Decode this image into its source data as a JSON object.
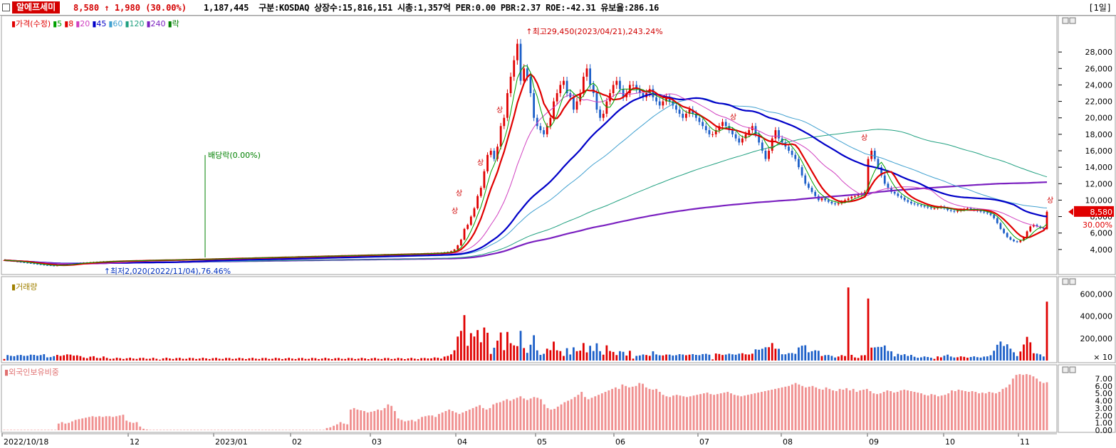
{
  "header": {
    "name": "알에프세미",
    "price": "8,580",
    "change_arrow": "↑",
    "change": "1,980",
    "change_pct": "(30.00%)",
    "volume": "1,187,445",
    "info": "구분:KOSDAQ 상장수:15,816,151 시총:1,357억 PER:0.00 PBR:2.37 ROE:-42.31 유보율:286.16",
    "period": "[1일]"
  },
  "colors": {
    "up": "#e00000",
    "down": "#1c5fc8",
    "ma5": "#00a000",
    "ma8": "#e00000",
    "ma20": "#d040c0",
    "ma45": "#0000c8",
    "ma60": "#40a0d0",
    "ma120": "#20a080",
    "ma240": "#7a20c0",
    "foreign": "#f09090"
  },
  "legend": {
    "price": [
      {
        "text": "가격(수정)",
        "color": "#e00000"
      },
      {
        "text": "5",
        "color": "#00a000"
      },
      {
        "text": "8",
        "color": "#e00000"
      },
      {
        "text": "20",
        "color": "#d040c0"
      },
      {
        "text": "45",
        "color": "#0000c8"
      },
      {
        "text": "60",
        "color": "#40a0d0"
      },
      {
        "text": "120",
        "color": "#20a080"
      },
      {
        "text": "240",
        "color": "#7a20c0"
      },
      {
        "text": "락",
        "color": "#008000"
      }
    ],
    "volume": "거래량",
    "foreign": "외국인보유비중"
  },
  "chart_data": [
    {
      "type": "candlestick",
      "panel": "price",
      "x_labels": [
        "2022/10/18",
        "12",
        "2023/01",
        "02",
        "03",
        "04",
        "05",
        "06",
        "07",
        "08",
        "09",
        "10",
        "11"
      ],
      "y_ticks": [
        "28,000",
        "26,000",
        "24,000",
        "22,000",
        "20,000",
        "18,000",
        "16,000",
        "14,000",
        "12,000",
        "10,000",
        "8,000",
        "6,000",
        "4,000"
      ],
      "ylim": [
        2000,
        30000
      ],
      "annotations": {
        "high": "최고29,450(2023/04/21),243.24%",
        "low": "최저2,020(2022/11/04),76.46%",
        "dividend": "배당락(0.00%)",
        "limit_up": "상"
      },
      "last_price_label": "8,580",
      "last_pct_label": "30.00%",
      "close_series": [
        2700,
        2650,
        2600,
        2550,
        2500,
        2450,
        2400,
        2350,
        2300,
        2250,
        2200,
        2150,
        2100,
        2080,
        2050,
        2020,
        2060,
        2100,
        2150,
        2200,
        2250,
        2300,
        2350,
        2380,
        2400,
        2420,
        2450,
        2480,
        2500,
        2520,
        2550,
        2560,
        2570,
        2580,
        2590,
        2600,
        2610,
        2620,
        2630,
        2640,
        2650,
        2660,
        2670,
        2680,
        2690,
        2700,
        2700,
        2700,
        2710,
        2720,
        2730,
        2740,
        2750,
        2760,
        2770,
        2780,
        2790,
        2800,
        2810,
        2820,
        2830,
        2840,
        2850,
        2860,
        2870,
        2880,
        2890,
        2900,
        2910,
        2920,
        2930,
        2940,
        2950,
        2960,
        2970,
        2980,
        2990,
        3000,
        3010,
        3020,
        3030,
        3040,
        3050,
        3060,
        3070,
        3080,
        3090,
        3100,
        3110,
        3120,
        3130,
        3140,
        3150,
        3160,
        3170,
        3180,
        3190,
        3200,
        3210,
        3220,
        3230,
        3240,
        3250,
        3260,
        3270,
        3280,
        3290,
        3300,
        3310,
        3320,
        3330,
        3340,
        3350,
        3360,
        3370,
        3380,
        3390,
        3400,
        3410,
        3420,
        3430,
        3440,
        3450,
        3460,
        3470,
        3480,
        3490,
        3500,
        3520,
        3540,
        3560,
        3580,
        3600,
        3650,
        3700,
        3800,
        4000,
        4500,
        5200,
        6500,
        7000,
        8000,
        9000,
        10500,
        11500,
        13500,
        15500,
        16000,
        15000,
        16500,
        19000,
        20000,
        23000,
        25000,
        27000,
        29000,
        24500,
        26000,
        25000,
        23000,
        20000,
        19000,
        18500,
        18000,
        19000,
        20000,
        22000,
        23000,
        24000,
        24500,
        23000,
        22500,
        21000,
        22000,
        23000,
        25000,
        26000,
        24000,
        23000,
        21000,
        20000,
        20500,
        22000,
        23000,
        24000,
        24500,
        23500,
        22500,
        23000,
        24000,
        24000,
        23500,
        23000,
        22500,
        23000,
        23500,
        22500,
        22000,
        21500,
        22000,
        22500,
        22000,
        21500,
        21000,
        20500,
        20000,
        20500,
        21000,
        20500,
        20000,
        19500,
        19000,
        18500,
        18000,
        18000,
        18500,
        19000,
        19500,
        19000,
        18500,
        18000,
        17500,
        17000,
        17500,
        18000,
        18500,
        19000,
        18000,
        17000,
        16000,
        15000,
        16000,
        17500,
        18500,
        17500,
        17000,
        16500,
        16000,
        15500,
        15000,
        14000,
        13000,
        12000,
        11500,
        11000,
        10500,
        10000,
        10200,
        10000,
        9800,
        9600,
        9500,
        9600,
        9800,
        10000,
        10200,
        10400,
        10500,
        10600,
        10800,
        11000,
        15000,
        16000,
        15000,
        14000,
        13000,
        12000,
        11500,
        11000,
        10800,
        10500,
        10300,
        10000,
        9800,
        9600,
        9500,
        9400,
        9300,
        9200,
        9100,
        9000,
        9000,
        9100,
        9200,
        9000,
        8800,
        8700,
        8600,
        8700,
        8800,
        8900,
        9000,
        8900,
        8800,
        8700,
        8600,
        8500,
        8400,
        8200,
        7800,
        7200,
        6500,
        6000,
        5500,
        5200,
        5000,
        4900,
        5100,
        5500,
        6200,
        6800,
        7000,
        6800,
        6600,
        6500,
        8580
      ]
    },
    {
      "type": "bar",
      "panel": "volume",
      "series_label": "거래량",
      "y_ticks": [
        "600,000",
        "400,000",
        "200,000"
      ],
      "y_unit": "× 10",
      "ylim": [
        0,
        700000
      ],
      "peak_values": [
        540000,
        560000,
        660000,
        420000
      ]
    },
    {
      "type": "bar",
      "panel": "foreign",
      "series_label": "외국인보유비중",
      "y_ticks": [
        "7.00",
        "6.00",
        "5.00",
        "4.00",
        "3.00",
        "2.00",
        "1.00",
        "0.00"
      ],
      "ylim": [
        0,
        8
      ],
      "values": [
        0.05,
        0.05,
        0.05,
        0.05,
        0.05,
        0.05,
        0.05,
        0.05,
        0.05,
        0.05,
        0.05,
        0.05,
        0.05,
        0.05,
        0.05,
        0.05,
        0.9,
        1.1,
        0.9,
        1.0,
        1.2,
        1.4,
        1.5,
        1.6,
        1.7,
        1.8,
        1.9,
        1.8,
        1.9,
        1.8,
        1.9,
        1.9,
        1.8,
        1.9,
        2.0,
        2.1,
        1.3,
        1.1,
        1.0,
        1.1,
        0.5,
        0.2,
        0.1,
        0.05,
        0.05,
        0.05,
        0.05,
        0.05,
        0.05,
        0.05,
        0.05,
        0.05,
        0.05,
        0.05,
        0.05,
        0.05,
        0.05,
        0.05,
        0.05,
        0.05,
        0.05,
        0.05,
        0.05,
        0.05,
        0.05,
        0.05,
        0.05,
        0.05,
        0.05,
        0.05,
        0.05,
        0.05,
        0.05,
        0.05,
        0.05,
        0.05,
        0.05,
        0.05,
        0.05,
        0.05,
        0.05,
        0.05,
        0.05,
        0.05,
        0.05,
        0.05,
        0.05,
        0.05,
        0.05,
        0.05,
        0.05,
        0.05,
        0.05,
        0.05,
        0.05,
        0.3,
        0.4,
        0.6,
        0.8,
        1.1,
        0.9,
        0.8,
        2.8,
        3.0,
        2.8,
        2.7,
        2.6,
        2.4,
        2.5,
        2.6,
        2.8,
        2.7,
        3.0,
        3.5,
        3.3,
        2.6,
        1.6,
        1.4,
        1.2,
        1.3,
        1.4,
        1.2,
        1.5,
        1.8,
        1.9,
        2.0,
        2.0,
        1.8,
        2.2,
        2.4,
        2.6,
        2.8,
        2.6,
        2.4,
        2.2,
        2.4,
        2.6,
        2.8,
        3.0,
        3.2,
        3.4,
        3.0,
        2.8,
        3.0,
        3.5,
        3.7,
        3.8,
        4.0,
        4.2,
        4.0,
        4.2,
        4.4,
        4.6,
        4.3,
        4.1,
        4.3,
        4.5,
        4.4,
        4.2,
        3.5,
        3.0,
        2.8,
        2.9,
        3.2,
        3.5,
        3.8,
        4.0,
        4.2,
        4.5,
        4.8,
        5.2,
        4.5,
        4.2,
        4.4,
        4.6,
        4.8,
        5.0,
        5.2,
        5.4,
        5.6,
        5.8,
        5.6,
        6.2,
        6.0,
        5.8,
        5.9,
        6.0,
        6.4,
        6.3,
        5.8,
        5.6,
        5.5,
        5.6,
        5.2,
        4.8,
        4.6,
        4.5,
        4.7,
        4.8,
        4.7,
        4.6,
        4.5,
        4.6,
        4.7,
        4.8,
        4.9,
        5.0,
        5.1,
        4.9,
        4.8,
        4.9,
        5.0,
        5.1,
        5.2,
        5.0,
        4.8,
        4.7,
        4.6,
        4.7,
        4.8,
        4.9,
        5.0,
        5.1,
        5.2,
        5.3,
        5.4,
        5.5,
        5.6,
        5.7,
        5.8,
        5.9,
        6.0,
        6.2,
        6.4,
        6.2,
        6.0,
        5.8,
        5.9,
        6.0,
        5.8,
        5.6,
        5.5,
        5.8,
        5.6,
        5.4,
        5.3,
        5.6,
        5.5,
        5.7,
        5.4,
        5.6,
        5.2,
        5.4,
        5.5,
        5.6,
        5.3,
        5.0,
        4.9,
        5.0,
        5.2,
        5.4,
        5.3,
        5.1,
        5.2,
        5.4,
        5.5,
        5.4,
        5.3,
        5.2,
        5.1,
        5.0,
        4.8,
        4.7,
        4.9,
        4.8,
        4.6,
        4.7,
        4.8,
        5.0,
        5.4,
        5.3,
        5.5,
        5.4,
        5.3,
        5.2,
        5.3,
        5.2,
        5.0,
        5.1,
        5.0,
        5.2,
        5.1,
        5.0,
        5.2,
        5.6,
        5.8,
        6.2,
        7.0,
        7.5,
        7.6,
        7.5,
        7.6,
        7.5,
        7.3,
        7.0,
        6.6,
        6.4,
        6.5
      ]
    }
  ]
}
